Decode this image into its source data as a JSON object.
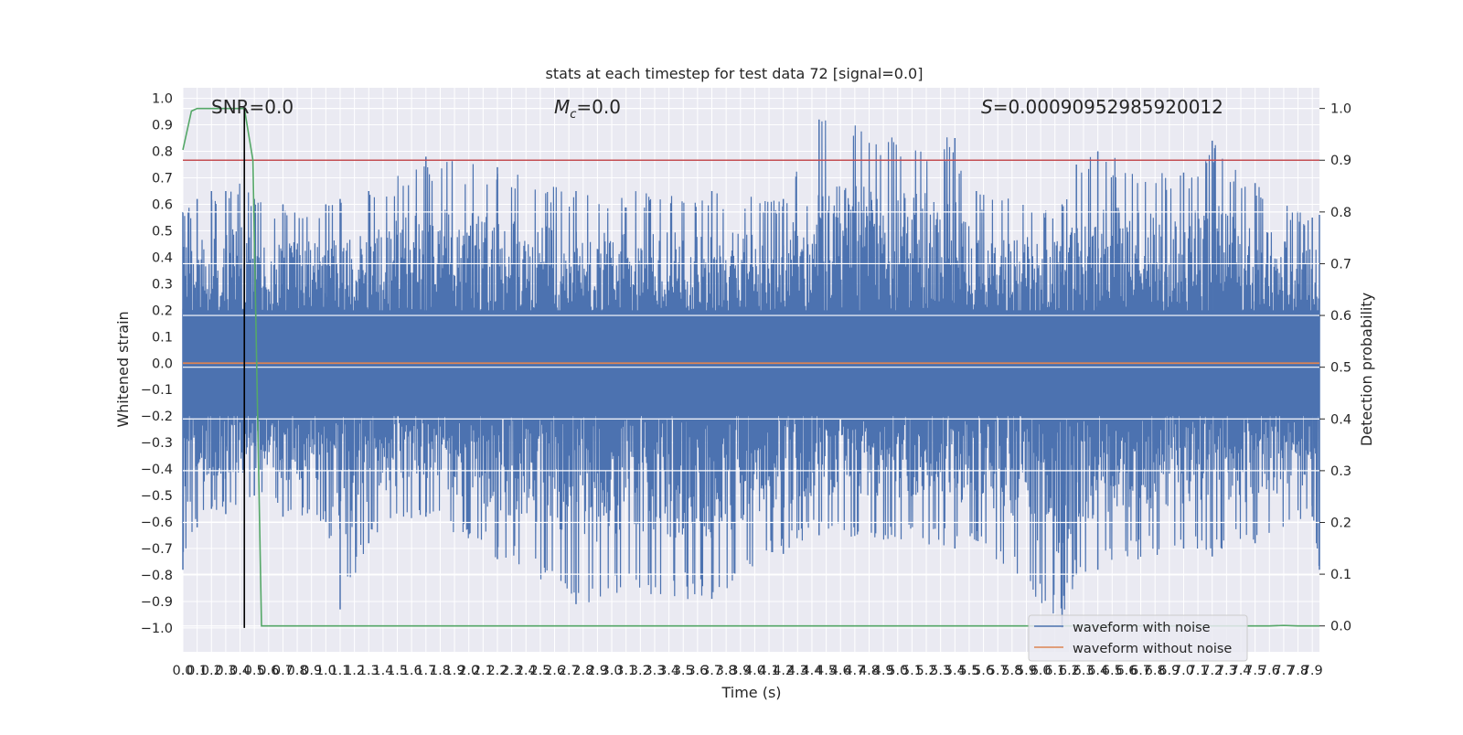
{
  "chart_data": {
    "type": "line",
    "title": "stats at each timestep for test data 72 [signal=0.0]",
    "xlabel": "Time (s)",
    "ylabel": "Whitened strain",
    "y2label": "Detection probability",
    "xlim": [
      0.0,
      7.95
    ],
    "ylim": [
      -1.09,
      1.04
    ],
    "y2lim": [
      -0.05,
      1.04
    ],
    "x_ticks": [
      0.0,
      0.1,
      0.2,
      0.3,
      0.4,
      0.5,
      0.6,
      0.7,
      0.8,
      0.9,
      1.0,
      1.1,
      1.2,
      1.3,
      1.4,
      1.5,
      1.6,
      1.7,
      1.8,
      1.9,
      2.0,
      2.1,
      2.2,
      2.3,
      2.4,
      2.5,
      2.6,
      2.7,
      2.8,
      2.9,
      3.0,
      3.1,
      3.2,
      3.3,
      3.4,
      3.5,
      3.6,
      3.7,
      3.8,
      3.9,
      4.0,
      4.1,
      4.2,
      4.3,
      4.4,
      4.5,
      4.6,
      4.7,
      4.8,
      4.9,
      5.0,
      5.1,
      5.2,
      5.3,
      5.4,
      5.5,
      5.6,
      5.7,
      5.8,
      5.9,
      6.0,
      6.1,
      6.2,
      6.3,
      6.4,
      6.5,
      6.6,
      6.7,
      6.8,
      6.9,
      7.0,
      7.1,
      7.2,
      7.3,
      7.4,
      7.5,
      7.6,
      7.7,
      7.8,
      7.9
    ],
    "y_ticks": [
      -1.0,
      -0.9,
      -0.8,
      -0.7,
      -0.6,
      -0.5,
      -0.4,
      -0.3,
      -0.2,
      -0.1,
      0.0,
      0.1,
      0.2,
      0.3,
      0.4,
      0.5,
      0.6,
      0.7,
      0.8,
      0.9,
      1.0
    ],
    "y2_ticks": [
      0.0,
      0.1,
      0.2,
      0.3,
      0.4,
      0.5,
      0.6,
      0.7,
      0.8,
      0.9,
      1.0
    ],
    "annotations": {
      "snr": "SNR=0.0",
      "mc_symbol": "M",
      "mc_sub": "c",
      "mc_value": "=0.0",
      "s_symbol": "S",
      "s_value": "=0.00090952985920012"
    },
    "threshold": {
      "axis": "right",
      "value": 0.9,
      "color": "#c44e52"
    },
    "vertical_marker": {
      "x": 0.43,
      "color": "#000000"
    },
    "series": [
      {
        "name": "waveform with noise",
        "axis": "left",
        "color": "#4c72b0",
        "envelope": {
          "x": [
            0.0,
            0.1,
            0.2,
            0.3,
            0.43,
            0.5,
            0.7,
            1.0,
            1.1,
            1.3,
            1.7,
            2.2,
            2.75,
            3.7,
            4.2,
            4.45,
            5.4,
            5.55,
            6.15,
            6.25,
            6.4,
            7.0,
            7.2,
            7.5,
            7.9,
            7.95
          ],
          "upper": [
            0.57,
            0.62,
            0.65,
            0.65,
            0.7,
            0.62,
            0.6,
            0.6,
            0.62,
            0.65,
            0.78,
            0.74,
            0.65,
            0.65,
            0.62,
            0.92,
            0.85,
            0.65,
            0.6,
            0.75,
            0.8,
            0.72,
            0.84,
            0.68,
            0.55,
            0.56
          ],
          "lower": [
            -0.78,
            -0.62,
            -0.55,
            -0.57,
            -0.55,
            -0.5,
            -0.58,
            -0.6,
            -0.93,
            -0.68,
            -0.58,
            -0.74,
            -0.91,
            -0.89,
            -0.72,
            -0.65,
            -0.7,
            -0.67,
            -1.0,
            -0.8,
            -0.78,
            -0.7,
            -0.73,
            -0.68,
            -0.58,
            -0.78
          ]
        }
      },
      {
        "name": "waveform without noise",
        "axis": "left",
        "color": "#dd8452",
        "x": [
          0.0,
          7.95
        ],
        "y": [
          0.0,
          0.0
        ]
      },
      {
        "name": "",
        "axis": "right",
        "color": "#55a868",
        "x": [
          0.0,
          0.06,
          0.1,
          0.2,
          0.3,
          0.43,
          0.49,
          0.55,
          0.6,
          1.0,
          7.6,
          7.7,
          7.8,
          7.95
        ],
        "y": [
          0.92,
          0.995,
          1.0,
          1.0,
          1.0,
          1.0,
          0.9,
          0.0,
          0.0,
          0.0,
          0.0,
          0.001,
          0.0,
          0.0
        ]
      }
    ],
    "legend": {
      "placement": "lower-right",
      "entries": [
        "waveform with noise",
        "waveform without noise"
      ]
    },
    "grid": true
  }
}
